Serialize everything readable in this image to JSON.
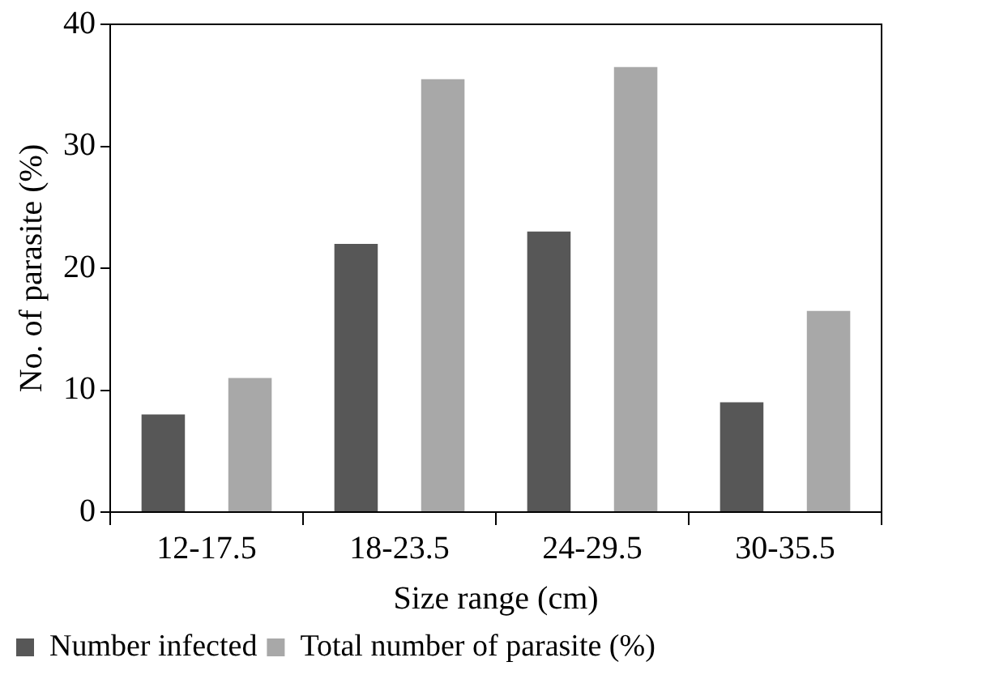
{
  "chart_data": {
    "type": "bar",
    "xlabel": "Size range (cm)",
    "ylabel": "No. of parasite (%)",
    "categories": [
      "12-17.5",
      "18-23.5",
      "24-29.5",
      "30-35.5"
    ],
    "series": [
      {
        "name": "Number infected",
        "color": "#575757",
        "values": [
          8,
          22,
          23,
          9
        ]
      },
      {
        "name": "Total number of parasite (%)",
        "color": "#a8a8a8",
        "values": [
          11,
          35.5,
          36.5,
          16.5
        ]
      }
    ],
    "ylim": [
      0,
      40
    ],
    "yticks": [
      0,
      10,
      20,
      30,
      40
    ],
    "grid": false,
    "legend": "bottom"
  }
}
